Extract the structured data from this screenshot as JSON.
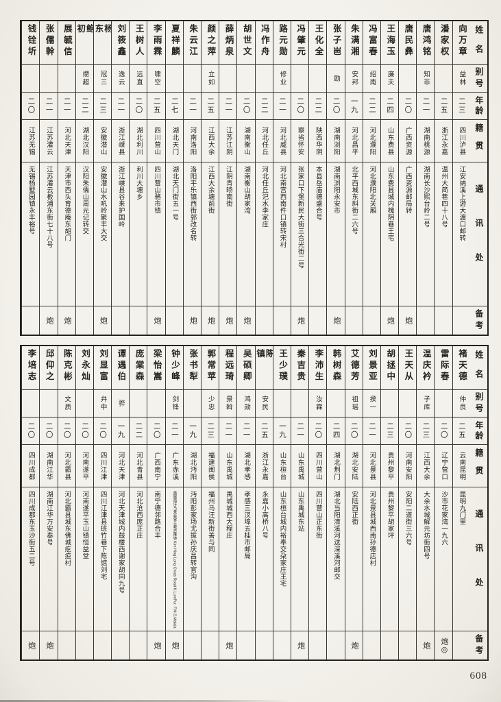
{
  "page": {
    "number": "608"
  },
  "colors": {
    "paper": "#f4f2ec",
    "ink": "#26241f",
    "line": "#3a3833"
  },
  "headers": {
    "name": "姓名",
    "alias": "别号",
    "age": "年龄",
    "native": "籍贯",
    "address": "通讯处",
    "remark": "备考"
  },
  "tables": [
    {
      "entries": [
        {
          "name": "向万章",
          "alias": "益林",
          "age": "二三",
          "native": "四川泸县",
          "address": "江安纳溪上游大渡口邮转",
          "remark": ""
        },
        {
          "name": "潘家权",
          "alias": "",
          "age": "二五",
          "native": "浙江永嘉",
          "address": "温州大简巷四十八号",
          "remark": ""
        },
        {
          "name": "唐鸿铭",
          "alias": "知非",
          "age": "二一",
          "native": "湖南桃源",
          "address": "湖南长沙熙台岭二号",
          "remark": ""
        },
        {
          "name": "唐民彝",
          "alias": "",
          "age": "二〇",
          "native": "广西资源",
          "address": "广西资源邮局转",
          "remark": "炮"
        },
        {
          "name": "王海玉",
          "alias": "廉夫",
          "age": "二四",
          "native": "山东费县",
          "address": "山东费县城内槐阴巷王宅",
          "remark": "炮"
        },
        {
          "name": "冯富春",
          "alias": "绍南",
          "age": "二二",
          "native": "河北濮阳",
          "address": "河北濮阳北关厢",
          "remark": ""
        },
        {
          "name": "朱满湘",
          "alias": "安邦",
          "age": "一九",
          "native": "河北昌平",
          "address": "北平西城东斜街二六号",
          "remark": ""
        },
        {
          "name": "张子岜",
          "alias": "励",
          "age": "二〇",
          "native": "湖南浏阳",
          "address": "湖南浏阳永安市",
          "remark": "炮"
        },
        {
          "name": "王化全",
          "alias": "",
          "age": "二二",
          "native": "陕西华阴",
          "address": "本县岳庙德盛合号",
          "remark": ""
        },
        {
          "name": "冯肇元",
          "alias": "",
          "age": "二〇",
          "native": "察省怀安",
          "address": "张家口下堡新民大街三合光街二号",
          "remark": "炮"
        },
        {
          "name": "路元勋",
          "alias": "修业",
          "age": "二一",
          "native": "河北威县",
          "address": "河北南宫西南件口镇转宋村",
          "remark": ""
        },
        {
          "name": "冯作舟",
          "alias": "",
          "age": "二二",
          "native": "河北任丘",
          "address": "河北任丘汜水李家庄",
          "remark": ""
        },
        {
          "name": "胡世文",
          "alias": "",
          "age": "二〇",
          "native": "湖南衡山",
          "address": "湖南衡山胡家湾",
          "remark": "炮"
        },
        {
          "name": "薛炳泉",
          "alias": "",
          "age": "二一",
          "native": "江苏江阴",
          "address": "江阴青旸南街",
          "remark": "炮"
        },
        {
          "name": "颜之萍",
          "alias": "立如",
          "age": "二五",
          "native": "江西大余",
          "address": "江西大余塘前街",
          "remark": "炮"
        },
        {
          "name": "朱云江",
          "alias": "",
          "age": "二一",
          "native": "河南洛阳",
          "address": "洛阳平乐镇西街郭改名转",
          "remark": "炮"
        },
        {
          "name": "夏祥麟",
          "alias": "",
          "age": "二七",
          "native": "湖北天门",
          "address": "湖北天门街五一号",
          "remark": ""
        },
        {
          "name": "李雨霖",
          "alias": "啸空",
          "age": "二五",
          "native": "四川营山",
          "address": "四川营山骆市镇",
          "remark": "炮"
        },
        {
          "name": "王树人",
          "alias": "远直",
          "age": "二〇",
          "native": "湖北利川",
          "address": "利川大塘乡",
          "remark": ""
        },
        {
          "name": "刘筱鑫",
          "alias": "逸云",
          "age": "二一",
          "native": "浙江嵊县",
          "address": "浙江嵊县谷来护国岭",
          "remark": ""
        },
        {
          "name": "杨东",
          "alias": "冠三",
          "age": "二三",
          "native": "安徽潜山",
          "address": "安徽潜山水吼岭聚丰大交",
          "remark": "炮"
        },
        {
          "name": "鲍初",
          "alias": "缵超",
          "age": "二二",
          "native": "湖北汉阳",
          "address": "汉阳朱儒山周元记转交",
          "remark": ""
        },
        {
          "name": "展毓信",
          "alias": "",
          "age": "二一",
          "native": "河北天津",
          "address": "天津市西头育德庵东胡门",
          "remark": "炮"
        },
        {
          "name": "张儒幹",
          "alias": "",
          "age": "二一",
          "native": "江苏灌云",
          "address": "江苏灌云板浦东街七十八号",
          "remark": "炮"
        },
        {
          "name": "钱铨圻",
          "alias": "",
          "age": "二〇",
          "native": "江苏无锡",
          "address": "无锡杨墅园镇永丰裕号",
          "remark": ""
        }
      ]
    },
    {
      "entries": [
        {
          "name": "褚天德",
          "alias": "仲良",
          "age": "二五",
          "native": "云南昆明",
          "address": "昆明九门里",
          "remark": ""
        },
        {
          "name": "雷际春",
          "alias": "",
          "age": "二〇",
          "native": "辽宁营口",
          "address": "沙市花家湾一九六",
          "remark": "炮◎"
        },
        {
          "name": "温庆衿",
          "alias": "子库",
          "age": "二三",
          "native": "江西大余",
          "address": "大余水城解元坊街四号",
          "remark": "炮"
        },
        {
          "name": "王天从",
          "alias": "",
          "age": "二〇",
          "native": "河南安阳",
          "address": "安阳二道街三六号",
          "remark": ""
        },
        {
          "name": "胡拯中",
          "alias": "",
          "age": "二三",
          "native": "贵州黎平",
          "address": "贵州黎平胡家坪",
          "remark": ""
        },
        {
          "name": "刘景亚",
          "alias": "揆一",
          "age": "二一",
          "native": "河北景县",
          "address": "河北景县城西南孙德店村",
          "remark": ""
        },
        {
          "name": "艾德芳",
          "alias": "祖瑶",
          "age": "二〇",
          "native": "湖北安陆",
          "address": "安陆西正街",
          "remark": "炮"
        },
        {
          "name": "韩树森",
          "alias": "",
          "age": "二四",
          "native": "湖北荆门",
          "address": "湖北当阳淯溪河送深溪河邮交",
          "remark": ""
        },
        {
          "name": "李沛生",
          "alias": "汝霖",
          "age": "二〇",
          "native": "四川营山",
          "address": "四川营山正东街",
          "remark": ""
        },
        {
          "name": "秦吉贵",
          "alias": "",
          "age": "二一",
          "native": "山东禹城",
          "address": "山东禹城东站",
          "remark": "炮"
        },
        {
          "name": "王少璞",
          "alias": "",
          "age": "一九",
          "native": "山东桓台",
          "address": "山东桓台城内裕奉交朶家庄王宅",
          "remark": ""
        },
        {
          "name": "陈镇",
          "alias": "安民",
          "age": "二五",
          "native": "浙江永嘉",
          "address": "永嘉小高桥八号",
          "remark": ""
        },
        {
          "name": "吴硕卿",
          "alias": "鸿勋",
          "age": "二一",
          "native": "湖北孝感",
          "address": "孝感三汊埠五桂市邮局",
          "remark": ""
        },
        {
          "name": "程远琦",
          "alias": "景斡",
          "age": "二一",
          "native": "山东禹城",
          "address": "禹城城西大程庄",
          "remark": "炮"
        },
        {
          "name": "郭常苹",
          "alias": "少忠",
          "age": "二三",
          "native": "福建闽侯",
          "address": "福州马汪新街善与同",
          "remark": ""
        },
        {
          "name": "张书犁",
          "alias": "",
          "age": "一九",
          "native": "湖北沔阳",
          "address": "沔阳彭家场尤拔孙庆昌转官沟",
          "remark": ""
        },
        {
          "name": "钟少峰",
          "alias": "剑锋",
          "age": "二一",
          "native": "广东赤溪",
          "address": "英属南洋马来亚雪兰莪吉隆坡 Kim Hing Long Chras Road K.LumPur. F.M.S.Malaia",
          "address_small": true,
          "remark": "炮"
        },
        {
          "name": "梁怡嵩",
          "alias": "",
          "age": "二〇",
          "native": "广西南宁",
          "address": "南宁德邻路合丰",
          "remark": "炮"
        },
        {
          "name": "庞棠森",
          "alias": "",
          "age": "二二",
          "native": "河北青县",
          "address": "河北沧西庞正庄",
          "remark": ""
        },
        {
          "name": "谭遇伯",
          "alias": "骅",
          "age": "一九",
          "native": "河北天津",
          "address": "河北天津城内鼓楼西谢家胡同九号",
          "remark": ""
        },
        {
          "name": "刘显富",
          "alias": "弁中",
          "age": "二〇",
          "native": "四川江津",
          "address": "四川江津县班竹巷下陈馆刘宅",
          "remark": ""
        },
        {
          "name": "刘永灿",
          "alias": "",
          "age": "二〇",
          "native": "河南遂平",
          "address": "河南遂平玉山镇恒益堂",
          "remark": ""
        },
        {
          "name": "陈克彬",
          "alias": "文质",
          "age": "二〇",
          "native": "河北霸县",
          "address": "河北霸县城东佛城疙疸村",
          "remark": ""
        },
        {
          "name": "邱仰之",
          "alias": "",
          "age": "二〇",
          "native": "湖南江华",
          "address": "湖南江华万安泰号",
          "remark": "炮"
        },
        {
          "name": "李培志",
          "alias": "",
          "age": "二〇",
          "native": "四川成都",
          "address": "四川成都东玉沙街五二号",
          "remark": "炮"
        }
      ]
    }
  ]
}
